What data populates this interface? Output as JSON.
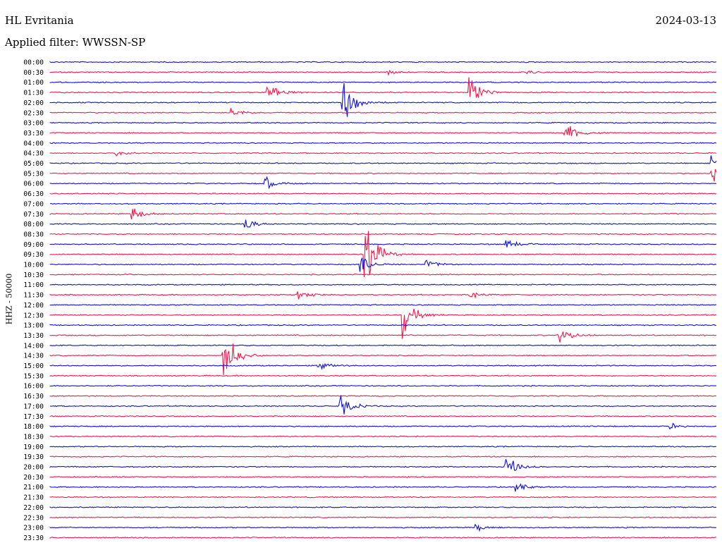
{
  "header": {
    "station": "HL Evritania",
    "date": "2024-03-13",
    "filter_label": "Applied filter: WWSSN-SP"
  },
  "colors": {
    "trace_a": "#1010d8",
    "trace_b": "#ee1a4c"
  },
  "chart_data": {
    "type": "line",
    "title": "HL Evritania",
    "ylabel": "HHZ - 50000",
    "x_range_minutes": [
      0,
      30
    ],
    "row_times": [
      "00:00",
      "00:30",
      "01:00",
      "01:30",
      "02:00",
      "02:30",
      "03:00",
      "03:30",
      "04:00",
      "04:30",
      "05:00",
      "05:30",
      "06:00",
      "06:30",
      "07:00",
      "07:30",
      "08:00",
      "08:30",
      "09:00",
      "09:30",
      "10:00",
      "10:30",
      "11:00",
      "11:30",
      "12:00",
      "12:30",
      "13:00",
      "13:30",
      "14:00",
      "14:30",
      "15:00",
      "15:30",
      "16:00",
      "16:30",
      "17:00",
      "17:30",
      "18:00",
      "18:30",
      "19:00",
      "19:30",
      "20:00",
      "20:30",
      "21:00",
      "21:30",
      "22:00",
      "22:30",
      "23:00",
      "23:30"
    ],
    "events": [
      {
        "row": 1,
        "minute": 15.2,
        "amplitude": 0.3
      },
      {
        "row": 1,
        "minute": 21.5,
        "amplitude": 0.3
      },
      {
        "row": 3,
        "minute": 9.8,
        "amplitude": 1.6
      },
      {
        "row": 3,
        "minute": 18.9,
        "amplitude": 1.8
      },
      {
        "row": 4,
        "minute": 13.2,
        "amplitude": 3.2
      },
      {
        "row": 5,
        "minute": 8.2,
        "amplitude": 0.6
      },
      {
        "row": 7,
        "minute": 23.2,
        "amplitude": 1.5
      },
      {
        "row": 9,
        "minute": 3.0,
        "amplitude": 0.3
      },
      {
        "row": 10,
        "minute": 29.8,
        "amplitude": 1.0
      },
      {
        "row": 11,
        "minute": 29.8,
        "amplitude": 1.2
      },
      {
        "row": 12,
        "minute": 9.7,
        "amplitude": 0.9
      },
      {
        "row": 15,
        "minute": 3.7,
        "amplitude": 1.0
      },
      {
        "row": 16,
        "minute": 8.8,
        "amplitude": 0.7
      },
      {
        "row": 19,
        "minute": 14.2,
        "amplitude": 5.5
      },
      {
        "row": 18,
        "minute": 20.5,
        "amplitude": 0.8
      },
      {
        "row": 20,
        "minute": 14.0,
        "amplitude": 1.0
      },
      {
        "row": 20,
        "minute": 16.9,
        "amplitude": 0.8
      },
      {
        "row": 23,
        "minute": 11.2,
        "amplitude": 0.6
      },
      {
        "row": 23,
        "minute": 18.9,
        "amplitude": 0.6
      },
      {
        "row": 25,
        "minute": 15.9,
        "amplitude": 2.6
      },
      {
        "row": 27,
        "minute": 22.9,
        "amplitude": 1.2
      },
      {
        "row": 29,
        "minute": 7.8,
        "amplitude": 4.0
      },
      {
        "row": 30,
        "minute": 12.1,
        "amplitude": 0.6
      },
      {
        "row": 34,
        "minute": 13.1,
        "amplitude": 1.4
      },
      {
        "row": 36,
        "minute": 27.9,
        "amplitude": 0.4
      },
      {
        "row": 40,
        "minute": 20.5,
        "amplitude": 1.6
      },
      {
        "row": 42,
        "minute": 21.0,
        "amplitude": 0.6
      },
      {
        "row": 46,
        "minute": 19.2,
        "amplitude": 0.4
      }
    ]
  }
}
